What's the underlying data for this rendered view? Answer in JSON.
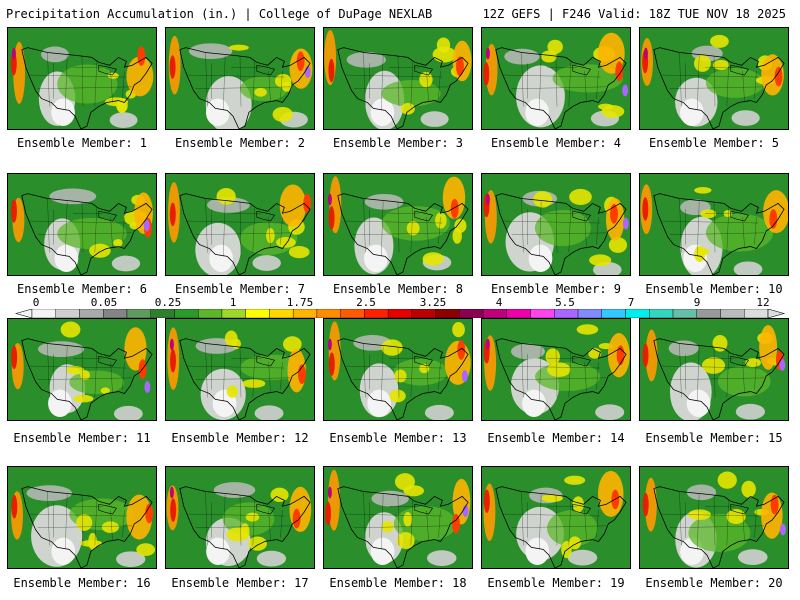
{
  "header": {
    "left_title": "Precipitation Accumulation (in.) | College of DuPage NEXLAB",
    "right_title": "12Z GEFS | F246 Valid: 18Z TUE NOV 18 2025"
  },
  "panel_label_prefix": "Ensemble Member:",
  "members": [
    "1",
    "2",
    "3",
    "4",
    "5",
    "6",
    "7",
    "8",
    "9",
    "10",
    "11",
    "12",
    "13",
    "14",
    "15",
    "16",
    "17",
    "18",
    "19",
    "20"
  ],
  "colorbar": {
    "tick_labels": [
      "0",
      "0.05",
      "0.25",
      "1",
      "1.75",
      "2.5",
      "3.25",
      "4",
      "5.5",
      "7",
      "9",
      "12"
    ],
    "bins": [
      "#f4f4f4",
      "#cfcfcf",
      "#aaaaaa",
      "#858585",
      "#5f9a5f",
      "#2f7f2f",
      "#2a9a2a",
      "#5cb82a",
      "#9ed62a",
      "#ffff00",
      "#ffd800",
      "#ffb400",
      "#ff8c00",
      "#ff5a00",
      "#ff2000",
      "#e60000",
      "#bb0000",
      "#8c0000",
      "#8c0050",
      "#c0007a",
      "#ee00aa",
      "#ff44ee",
      "#aa66ff",
      "#7f8cff",
      "#33c8ff",
      "#00eeee",
      "#33d6c0",
      "#66c0a8",
      "#999999",
      "#bbbbbb",
      "#dddddd"
    ]
  }
}
